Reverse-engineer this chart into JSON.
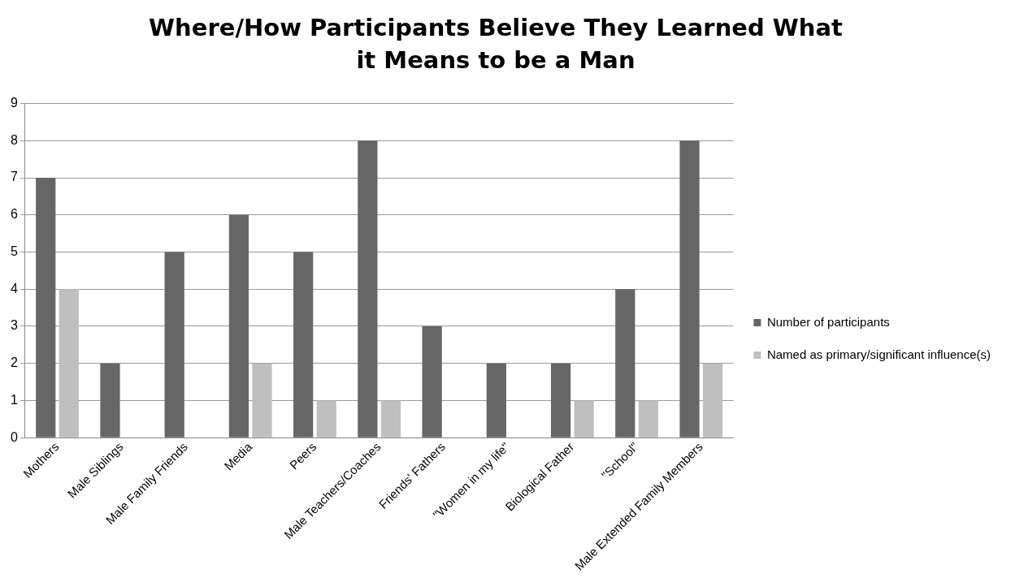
{
  "chart_data": {
    "type": "bar",
    "title": "Where/How Participants Believe They Learned What it Means to be a Man",
    "categories": [
      "Mothers",
      "Male Siblings",
      "Male Family Friends",
      "Media",
      "Peers",
      "Male Teachers/Coaches",
      "Friends' Fathers",
      "\"Women in my life\"",
      "Biological Father",
      "\"School\"",
      "Male Extended Family Members"
    ],
    "series": [
      {
        "name": "Number of participants",
        "color": "#666666",
        "values": [
          7,
          2,
          5,
          6,
          5,
          8,
          3,
          2,
          2,
          4,
          8
        ]
      },
      {
        "name": "Named as primary/significant influence(s)",
        "color": "#bfbfbf",
        "values": [
          4,
          0,
          0,
          2,
          1,
          1,
          0,
          0,
          1,
          1,
          2
        ]
      }
    ],
    "ylim": [
      0,
      9
    ],
    "yticks": [
      0,
      1,
      2,
      3,
      4,
      5,
      6,
      7,
      8,
      9
    ],
    "grid": "y",
    "legend": "right"
  }
}
